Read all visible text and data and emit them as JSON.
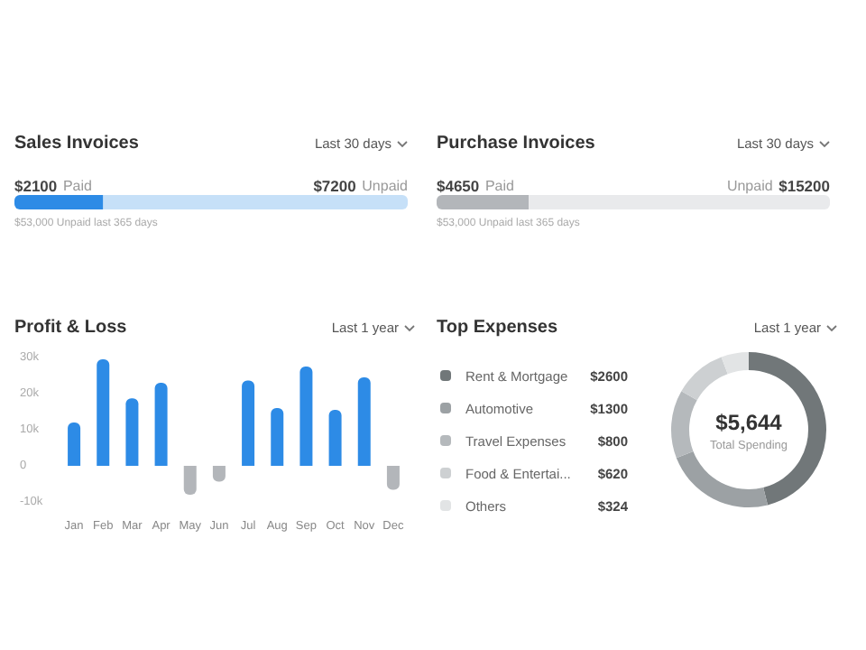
{
  "chart_data": [
    {
      "type": "bar",
      "title": "Sales Invoices",
      "orientation": "horizontal",
      "stacked": true,
      "categories": [
        null
      ],
      "series": [
        {
          "name": "Paid",
          "color": "#2d8be6",
          "values": [
            2100
          ],
          "value_labels": [
            "$2100"
          ]
        },
        {
          "name": "Unpaid",
          "color": "#c6e0f8",
          "values": [
            7200
          ],
          "value_labels": [
            "$7200"
          ]
        }
      ],
      "annotations": [
        "Last 30 days",
        "$53,000 Unpaid last 365 days"
      ]
    },
    {
      "type": "bar",
      "title": "Purchase Invoices",
      "orientation": "horizontal",
      "stacked": true,
      "categories": [
        null
      ],
      "series": [
        {
          "name": "Paid",
          "color": "#b3b6ba",
          "values": [
            4650
          ],
          "value_labels": [
            "$4650"
          ]
        },
        {
          "name": "Unpaid",
          "color": "#e9eaec",
          "values": [
            15200
          ],
          "value_labels": [
            "$15200"
          ]
        }
      ],
      "annotations": [
        "Last 30 days",
        "$53,000 Unpaid last 365 days"
      ]
    },
    {
      "type": "bar",
      "title": "Profit & Loss",
      "categories": [
        "Jan",
        "Feb",
        "Mar",
        "Apr",
        "May",
        "Jun",
        "Jul",
        "Aug",
        "Sep",
        "Oct",
        "Nov",
        "Dec"
      ],
      "values": [
        12,
        29.5,
        18.7,
        23,
        -8,
        -4.4,
        23.6,
        16,
        27.5,
        15.5,
        24.5,
        -6.6
      ],
      "colors": [
        "#2d8be6",
        "#2d8be6",
        "#2d8be6",
        "#2d8be6",
        "#b3b6ba",
        "#b3b6ba",
        "#2d8be6",
        "#2d8be6",
        "#2d8be6",
        "#2d8be6",
        "#2d8be6",
        "#b3b6ba"
      ],
      "ylim": [
        -10,
        30
      ],
      "yticks": [
        {
          "value": -10,
          "label": "-10k"
        },
        0,
        {
          "value": 10,
          "label": "10k"
        },
        {
          "value": 20,
          "label": "20k"
        },
        {
          "value": 30,
          "label": "30k"
        }
      ],
      "annotations": [
        "Last 1 year"
      ]
    },
    {
      "type": "donut",
      "title": "Top Expenses",
      "categories": [
        "Rent & Mortgage",
        "Automotive",
        "Travel Expenses",
        "Food & Entertai...",
        "Others"
      ],
      "values": [
        2600,
        1300,
        800,
        620,
        324
      ],
      "colors": [
        "#717779",
        "#9ca1a4",
        "#b5b9bc",
        "#cdd0d2",
        "#e2e4e5"
      ],
      "value_labels": [
        "$2600",
        "$1300",
        "$800",
        "$620",
        "$324"
      ],
      "legend": "left",
      "annotations": [
        "Last 1 year",
        "$5,644",
        "Total Spending"
      ]
    }
  ]
}
